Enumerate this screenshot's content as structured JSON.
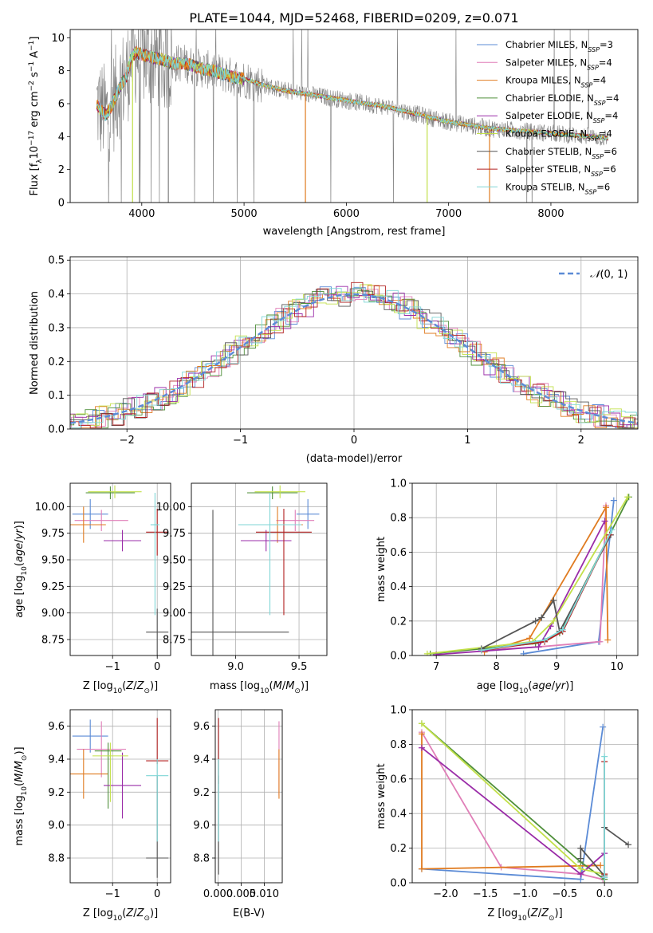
{
  "figure": {
    "title": "PLATE=1044, MJD=52468, FIBERID=0209, z=0.071"
  },
  "models": [
    {
      "key": "chab_miles",
      "name": "Chabrier MILES, N_SSP=3",
      "nssp": "3",
      "color": "#5b8bd6"
    },
    {
      "key": "salp_miles",
      "name": "Salpeter MILES, N_SSP=4",
      "nssp": "4",
      "color": "#e07fb8"
    },
    {
      "key": "krou_miles",
      "name": "Kroupa MILES, N_SSP=4",
      "nssp": "4",
      "color": "#e07b20"
    },
    {
      "key": "chab_elodie",
      "name": "Chabrier ELODIE, N_SSP=4",
      "nssp": "4",
      "color": "#4f8f3a"
    },
    {
      "key": "salp_elodie",
      "name": "Salpeter ELODIE, N_SSP=4",
      "nssp": "4",
      "color": "#9a2ca8"
    },
    {
      "key": "krou_elodie",
      "name": "Kroupa ELODIE, N_SSP=4",
      "nssp": "4",
      "color": "#c2e04a"
    },
    {
      "key": "chab_stelib",
      "name": "Chabrier STELIB, N_SSP=6",
      "nssp": "6",
      "color": "#555555"
    },
    {
      "key": "salp_stelib",
      "name": "Salpeter STELIB, N_SSP=6",
      "nssp": "6",
      "color": "#b22222"
    },
    {
      "key": "krou_stelib",
      "name": "Kroupa STELIB, N_SSP=6",
      "nssp": "6",
      "color": "#7fd6d6"
    }
  ],
  "legend_text": [
    {
      "pre": "Chabrier MILES, N",
      "sub": "SSP",
      "post": "=3"
    },
    {
      "pre": "Salpeter MILES, N",
      "sub": "SSP",
      "post": "=4"
    },
    {
      "pre": "Kroupa MILES, N",
      "sub": "SSP",
      "post": "=4"
    },
    {
      "pre": "Chabrier ELODIE, N",
      "sub": "SSP",
      "post": "=4"
    },
    {
      "pre": "Salpeter ELODIE, N",
      "sub": "SSP",
      "post": "=4"
    },
    {
      "pre": "Kroupa ELODIE, N",
      "sub": "SSP",
      "post": "=4"
    },
    {
      "pre": "Chabrier STELIB, N",
      "sub": "SSP",
      "post": "=6"
    },
    {
      "pre": "Salpeter STELIB, N",
      "sub": "SSP",
      "post": "=6"
    },
    {
      "pre": "Kroupa STELIB, N",
      "sub": "SSP",
      "post": "=6"
    }
  ],
  "chart_data": [
    {
      "id": "spectrum",
      "type": "line",
      "title": "PLATE=1044, MJD=52468, FIBERID=0209, z=0.071",
      "xlabel": "wavelength [Angstrom, rest frame]",
      "ylabel": "Flux [f_λ 10^-17 erg cm^-2 s^-1 A^-1]",
      "xlim": [
        3300,
        8850
      ],
      "ylim": [
        0,
        10.5
      ],
      "xticks": [
        4000,
        5000,
        6000,
        7000,
        8000
      ],
      "yticks": [
        0,
        2,
        4,
        6,
        8,
        10
      ],
      "data_color": "#808080",
      "continuum": {
        "x": [
          3560,
          3600,
          3650,
          3700,
          3750,
          3800,
          3850,
          3900,
          3950,
          4000,
          4100,
          4200,
          4300,
          4400,
          4500,
          4600,
          4700,
          4800,
          4900,
          5000,
          5200,
          5400,
          5600,
          5800,
          6000,
          6200,
          6400,
          6600,
          6800,
          7000,
          7200,
          7400,
          7600,
          7800,
          8000,
          8200,
          8400,
          8560
        ],
        "y": [
          6.0,
          5.6,
          5.3,
          5.8,
          6.5,
          7.2,
          7.6,
          8.9,
          9.1,
          9.0,
          8.8,
          8.7,
          8.4,
          8.5,
          8.3,
          8.1,
          8.0,
          7.8,
          7.6,
          7.5,
          7.1,
          6.8,
          6.6,
          6.4,
          6.2,
          6.0,
          5.8,
          5.5,
          5.2,
          4.9,
          4.7,
          4.5,
          4.4,
          4.3,
          4.2,
          4.1,
          4.0,
          3.9
        ]
      }
    },
    {
      "id": "residuals",
      "type": "histogram",
      "xlabel": "(data-model)/error",
      "ylabel": "Normed distribution",
      "xlim": [
        -2.5,
        2.5
      ],
      "ylim": [
        0,
        0.51
      ],
      "xticks": [
        -2,
        -1,
        0,
        1,
        2
      ],
      "yticks": [
        0.0,
        0.1,
        0.2,
        0.3,
        0.4,
        0.5
      ],
      "grid": true,
      "reference": {
        "name": "N(0,1)",
        "legend_placement": "top-right",
        "color": "#5b8bd6"
      }
    },
    {
      "id": "age_vs_Z",
      "type": "errorbar",
      "xlabel": "Z [log10(Z/Z⊙)]",
      "ylabel": "age [log10(age/yr)]",
      "xlim": [
        -1.95,
        0.3
      ],
      "ylim": [
        8.6,
        10.22
      ],
      "xticks": [
        -1,
        0
      ],
      "yticks": [
        8.75,
        9.0,
        9.25,
        9.5,
        9.75,
        10.0
      ],
      "points": [
        {
          "model": "chab_miles",
          "x": -1.5,
          "xerr": [
            0.4,
            0.4
          ],
          "y": 9.93,
          "yerr": [
            0.14,
            0.14
          ]
        },
        {
          "model": "salp_miles",
          "x": -1.25,
          "xerr": [
            0.6,
            0.6
          ],
          "y": 9.87,
          "yerr": [
            0.1,
            0.1
          ]
        },
        {
          "model": "krou_miles",
          "x": -1.65,
          "xerr": [
            0.5,
            0.5
          ],
          "y": 9.83,
          "yerr": [
            0.17,
            0.17
          ]
        },
        {
          "model": "chab_elodie",
          "x": -1.05,
          "xerr": [
            0.55,
            0.55
          ],
          "y": 10.13,
          "yerr": [
            0.06,
            0.06
          ]
        },
        {
          "model": "salp_elodie",
          "x": -0.78,
          "xerr": [
            0.42,
            0.42
          ],
          "y": 9.68,
          "yerr": [
            0.1,
            0.1
          ]
        },
        {
          "model": "krou_elodie",
          "x": -0.95,
          "xerr": [
            0.6,
            0.6
          ],
          "y": 10.14,
          "yerr": [
            0.06,
            0.06
          ]
        },
        {
          "model": "chab_stelib",
          "x": 0.0,
          "xerr": [
            0.25,
            0.25
          ],
          "y": 8.82,
          "yerr": [
            0.22,
            0.22
          ]
        },
        {
          "model": "salp_stelib",
          "x": 0.0,
          "xerr": [
            0.25,
            0.25
          ],
          "y": 9.76,
          "yerr": [
            0.22,
            0.22
          ]
        },
        {
          "model": "krou_stelib",
          "x": -0.05,
          "xerr": [
            0.1,
            0.1
          ],
          "y": 9.83,
          "yerr": [
            0.85,
            0.3
          ]
        }
      ]
    },
    {
      "id": "age_vs_mass",
      "type": "errorbar",
      "xlabel": "mass [log10(M/M⊙)]",
      "ylabel": "",
      "xlim": [
        8.65,
        9.72
      ],
      "ylim": [
        8.6,
        10.22
      ],
      "xticks": [
        9.0,
        9.5
      ],
      "yticks": [
        8.75,
        9.0,
        9.25,
        9.5,
        9.75,
        10.0
      ],
      "points": [
        {
          "model": "chab_miles",
          "x": 9.57,
          "xerr": [
            0.09,
            0.09
          ],
          "y": 9.93,
          "yerr": [
            0.14,
            0.14
          ]
        },
        {
          "model": "salp_miles",
          "x": 9.47,
          "xerr": [
            0.15,
            0.15
          ],
          "y": 9.87,
          "yerr": [
            0.1,
            0.1
          ]
        },
        {
          "model": "krou_miles",
          "x": 9.33,
          "xerr": [
            0.2,
            0.2
          ],
          "y": 9.83,
          "yerr": [
            0.17,
            0.17
          ]
        },
        {
          "model": "chab_elodie",
          "x": 9.29,
          "xerr": [
            0.2,
            0.2
          ],
          "y": 10.13,
          "yerr": [
            0.06,
            0.06
          ]
        },
        {
          "model": "salp_elodie",
          "x": 9.24,
          "xerr": [
            0.2,
            0.2
          ],
          "y": 9.68,
          "yerr": [
            0.1,
            0.1
          ]
        },
        {
          "model": "krou_elodie",
          "x": 9.35,
          "xerr": [
            0.2,
            0.2
          ],
          "y": 10.14,
          "yerr": [
            0.06,
            0.06
          ]
        },
        {
          "model": "chab_stelib",
          "x": 8.82,
          "xerr": [
            0.2,
            0.6
          ],
          "y": 8.82,
          "yerr": [
            0.22,
            1.15
          ]
        },
        {
          "model": "salp_stelib",
          "x": 9.38,
          "xerr": [
            0.22,
            0.22
          ],
          "y": 9.76,
          "yerr": [
            0.78,
            0.22
          ]
        },
        {
          "model": "krou_stelib",
          "x": 9.27,
          "xerr": [
            0.25,
            0.25
          ],
          "y": 9.83,
          "yerr": [
            0.85,
            0.3
          ]
        }
      ]
    },
    {
      "id": "weight_vs_age",
      "type": "line",
      "xlabel": "age [log10(age/yr)]",
      "ylabel": "mass weight",
      "xlim": [
        6.6,
        10.35
      ],
      "ylim": [
        0,
        1.0
      ],
      "xticks": [
        7,
        8,
        9,
        10
      ],
      "yticks": [
        0.0,
        0.2,
        0.4,
        0.6,
        0.8,
        1.0
      ],
      "series": [
        {
          "model": "chab_miles",
          "x": [
            8.45,
            9.7,
            9.95
          ],
          "y": [
            0.01,
            0.08,
            0.9
          ]
        },
        {
          "model": "salp_miles",
          "x": [
            7.8,
            8.7,
            9.72,
            9.82
          ],
          "y": [
            0.03,
            0.05,
            0.08,
            0.87
          ]
        },
        {
          "model": "krou_miles",
          "x": [
            7.8,
            8.55,
            9.82,
            9.85
          ],
          "y": [
            0.02,
            0.1,
            0.86,
            0.09
          ]
        },
        {
          "model": "chab_elodie",
          "x": [
            6.9,
            8.65,
            9.05,
            10.2
          ],
          "y": [
            0.01,
            0.07,
            0.13,
            0.92
          ]
        },
        {
          "model": "salp_elodie",
          "x": [
            7.0,
            8.7,
            8.9,
            9.8
          ],
          "y": [
            0.005,
            0.05,
            0.17,
            0.78
          ]
        },
        {
          "model": "krou_elodie",
          "x": [
            6.85,
            8.6,
            8.95,
            10.18
          ],
          "y": [
            0.01,
            0.08,
            0.2,
            0.92
          ]
        },
        {
          "model": "chab_stelib",
          "x": [
            7.75,
            8.65,
            8.75,
            8.95,
            9.05,
            9.9
          ],
          "y": [
            0.04,
            0.2,
            0.22,
            0.32,
            0.14,
            0.7
          ]
        },
        {
          "model": "salp_stelib",
          "x": [
            7.75,
            8.8,
            9.1,
            9.88
          ],
          "y": [
            0.03,
            0.08,
            0.14,
            0.7
          ]
        },
        {
          "model": "krou_stelib",
          "x": [
            7.75,
            8.8,
            9.1,
            9.92
          ],
          "y": [
            0.03,
            0.09,
            0.15,
            0.73
          ]
        }
      ]
    },
    {
      "id": "mass_vs_Z",
      "type": "errorbar",
      "xlabel": "Z [log10(Z/Z⊙)]",
      "ylabel": "mass [log10(M/M⊙)]",
      "xlim": [
        -1.95,
        0.3
      ],
      "ylim": [
        8.65,
        9.7
      ],
      "xticks": [
        -1,
        0
      ],
      "yticks": [
        8.8,
        9.0,
        9.2,
        9.4,
        9.6
      ],
      "points": [
        {
          "model": "chab_miles",
          "x": -1.5,
          "xerr": [
            0.4,
            0.4
          ],
          "y": 9.54,
          "yerr": [
            0.1,
            0.1
          ]
        },
        {
          "model": "salp_miles",
          "x": -1.25,
          "xerr": [
            0.55,
            0.55
          ],
          "y": 9.46,
          "yerr": [
            0.17,
            0.17
          ]
        },
        {
          "model": "krou_miles",
          "x": -1.65,
          "xerr": [
            0.55,
            0.55
          ],
          "y": 9.31,
          "yerr": [
            0.15,
            0.15
          ]
        },
        {
          "model": "chab_elodie",
          "x": -1.1,
          "xerr": [
            0.3,
            0.3
          ],
          "y": 9.45,
          "yerr": [
            0.35,
            0.05
          ]
        },
        {
          "model": "salp_elodie",
          "x": -0.78,
          "xerr": [
            0.42,
            0.42
          ],
          "y": 9.24,
          "yerr": [
            0.2,
            0.2
          ]
        },
        {
          "model": "krou_elodie",
          "x": -1.05,
          "xerr": [
            0.4,
            0.4
          ],
          "y": 9.42,
          "yerr": [
            0.28,
            0.08
          ]
        },
        {
          "model": "chab_stelib",
          "x": 0.0,
          "xerr": [
            0.25,
            0.25
          ],
          "y": 8.8,
          "yerr": [
            0.12,
            0.5
          ]
        },
        {
          "model": "salp_stelib",
          "x": 0.0,
          "xerr": [
            0.25,
            0.25
          ],
          "y": 9.39,
          "yerr": [
            0.02,
            0.26
          ]
        },
        {
          "model": "krou_stelib",
          "x": 0.0,
          "xerr": [
            0.25,
            0.25
          ],
          "y": 9.3,
          "yerr": [
            0.4,
            0.1
          ]
        }
      ]
    },
    {
      "id": "mass_vs_EBV",
      "type": "errorbar",
      "xlabel": "E(B-V)",
      "ylabel": "",
      "xlim": [
        -0.0006,
        0.0139
      ],
      "ylim": [
        8.65,
        9.7
      ],
      "xticks": [
        0.0,
        0.005,
        0.01
      ],
      "xtick_labels": [
        "0.000",
        "0.005",
        "0.010"
      ],
      "yticks": [
        8.8,
        9.0,
        9.2,
        9.4,
        9.6
      ],
      "points": [
        {
          "model": "salp_miles",
          "x": 0.0132,
          "y": 9.38,
          "yerr": [
            0.2,
            0.25
          ]
        },
        {
          "model": "krou_miles",
          "x": 0.0132,
          "y": 9.31,
          "yerr": [
            0.15,
            0.15
          ]
        },
        {
          "model": "chab_stelib",
          "x": 0.0001,
          "y": 9.0,
          "yerr": [
            0.3,
            0.3
          ]
        },
        {
          "model": "salp_stelib",
          "x": 0.0001,
          "y": 9.45,
          "yerr": [
            0.2,
            0.2
          ]
        },
        {
          "model": "krou_stelib",
          "x": 0.0001,
          "y": 9.3,
          "yerr": [
            0.4,
            0.1
          ]
        }
      ]
    },
    {
      "id": "weight_vs_Z",
      "type": "line",
      "xlabel": "Z [log10(Z/Z⊙)]",
      "ylabel": "mass weight",
      "xlim": [
        -2.42,
        0.42
      ],
      "ylim": [
        0,
        1.0
      ],
      "xticks": [
        -2.0,
        -1.5,
        -1.0,
        -0.5,
        0.0
      ],
      "yticks": [
        0.0,
        0.2,
        0.4,
        0.6,
        0.8,
        1.0
      ],
      "series": [
        {
          "model": "chab_miles",
          "x": [
            -2.3,
            -0.3,
            -0.02
          ],
          "y": [
            0.08,
            0.02,
            0.9
          ]
        },
        {
          "model": "salp_miles",
          "x": [
            -2.3,
            -1.3,
            -0.3,
            -0.02
          ],
          "y": [
            0.87,
            0.09,
            0.05,
            0.02
          ]
        },
        {
          "model": "krou_miles",
          "x": [
            -2.3,
            -2.3,
            -0.05
          ],
          "y": [
            0.86,
            0.08,
            0.1
          ]
        },
        {
          "model": "chab_elodie",
          "x": [
            -2.3,
            -0.3,
            0.0
          ],
          "y": [
            0.92,
            0.12,
            0.02
          ]
        },
        {
          "model": "salp_elodie",
          "x": [
            -2.3,
            -0.3,
            0.0
          ],
          "y": [
            0.78,
            0.05,
            0.17
          ]
        },
        {
          "model": "krou_elodie",
          "x": [
            -2.3,
            -0.3,
            0.0
          ],
          "y": [
            0.92,
            0.08,
            0.05
          ]
        },
        {
          "model": "chab_stelib",
          "x": [
            0.3,
            0.0,
            0.0,
            -0.3,
            -0.3
          ],
          "y": [
            0.22,
            0.32,
            0.04,
            0.2,
            0.14
          ]
        },
        {
          "model": "salp_stelib",
          "x": [
            0.0,
            0.0
          ],
          "y": [
            0.7,
            0.05
          ]
        },
        {
          "model": "krou_stelib",
          "x": [
            0.0,
            0.0
          ],
          "y": [
            0.73,
            0.03
          ]
        }
      ]
    }
  ]
}
